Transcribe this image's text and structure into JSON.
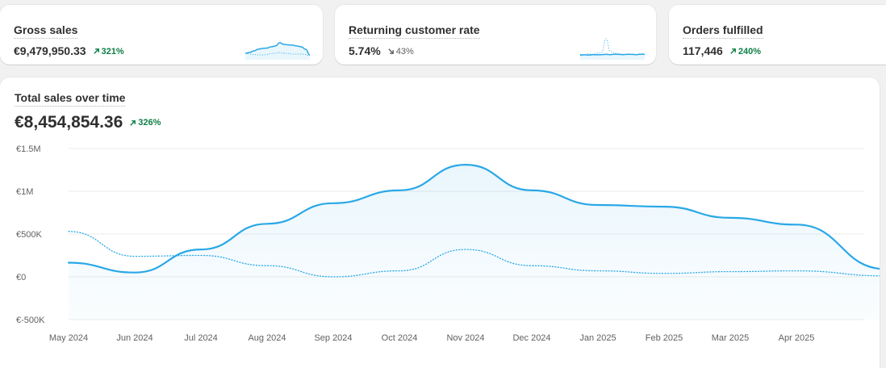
{
  "metrics": [
    {
      "title": "Gross sales",
      "value": "€9,479,950.33",
      "change": "321%",
      "direction": "up",
      "spark": {
        "current": [
          0.3,
          0.35,
          0.45,
          0.55,
          0.6,
          0.62,
          0.7,
          0.75,
          0.95,
          0.85,
          0.82,
          0.8,
          0.75,
          0.7,
          0.55,
          0.2
        ],
        "previous": [
          0.3,
          0.25,
          0.22,
          0.2,
          0.2,
          0.22,
          0.28,
          0.3,
          0.35,
          0.3,
          0.28,
          0.25,
          0.25,
          0.25,
          0.22,
          0.15
        ]
      }
    },
    {
      "title": "Returning customer rate",
      "value": "5.74%",
      "change": "43%",
      "direction": "down",
      "spark": {
        "current": [
          0.15,
          0.17,
          0.16,
          0.18,
          0.17,
          0.18,
          0.19,
          0.18,
          0.2,
          0.19,
          0.18,
          0.2,
          0.19,
          0.18,
          0.2,
          0.19
        ],
        "previous": [
          0.2,
          0.18,
          0.22,
          0.2,
          0.25,
          0.3,
          1.0,
          0.35,
          0.25,
          0.22,
          0.2,
          0.18,
          0.2,
          0.18,
          0.22,
          0.2
        ]
      }
    },
    {
      "title": "Orders fulfilled",
      "value": "117,446",
      "change": "240%",
      "direction": "up"
    }
  ],
  "main": {
    "title": "Total sales over time",
    "value": "€8,454,854.36",
    "change": "326%",
    "direction": "up"
  },
  "chart_data": {
    "type": "line",
    "title": "Total sales over time",
    "xlabel": "",
    "ylabel": "",
    "ylim": [
      -500000,
      1500000
    ],
    "y_ticks": [
      {
        "value": 1500000,
        "label": "€1.5M"
      },
      {
        "value": 1000000,
        "label": "€1M"
      },
      {
        "value": 500000,
        "label": "€500K"
      },
      {
        "value": 0,
        "label": "€0"
      },
      {
        "value": -500000,
        "label": "€-500K"
      }
    ],
    "categories": [
      "May 2024",
      "Jun 2024",
      "Jul 2024",
      "Aug 2024",
      "Sep 2024",
      "Oct 2024",
      "Nov 2024",
      "Dec 2024",
      "Jan 2025",
      "Feb 2025",
      "Mar 2025",
      "Apr 2025"
    ],
    "series": [
      {
        "values": [
          165000,
          50000,
          320000,
          620000,
          860000,
          1010000,
          1310000,
          1010000,
          840000,
          820000,
          690000,
          610000
        ],
        "end": 90000,
        "color": "#29a8e6",
        "style": "solid"
      },
      {
        "values": [
          530000,
          240000,
          250000,
          130000,
          0,
          70000,
          320000,
          130000,
          70000,
          40000,
          60000,
          70000
        ],
        "end": 10000,
        "color": "#29a8e6",
        "style": "dotted"
      }
    ],
    "grid": true,
    "legend": "none"
  }
}
